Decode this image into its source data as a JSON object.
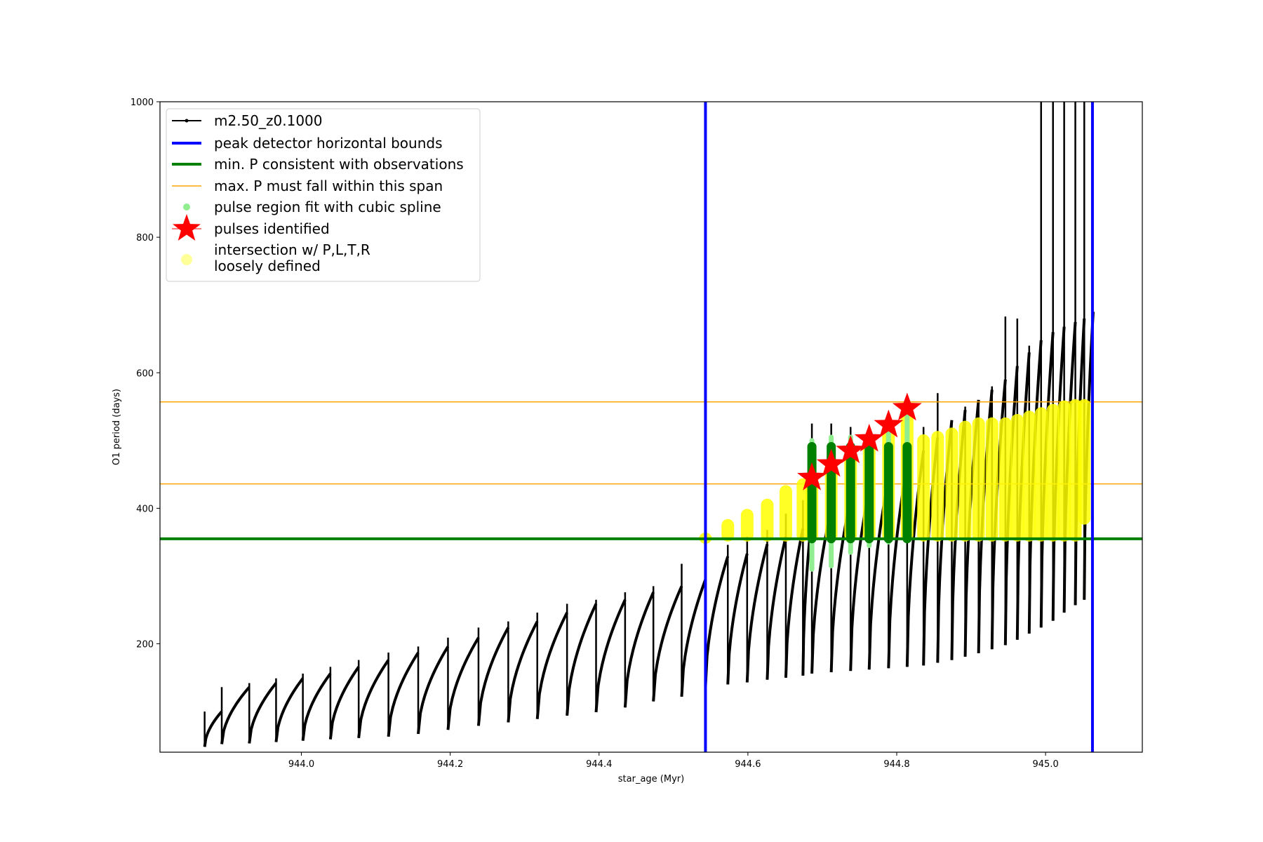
{
  "chart_data": {
    "type": "scatter",
    "xlabel": "star_age (Myr)",
    "ylabel": "O1 period (days)",
    "xlim": [
      943.81,
      945.13
    ],
    "ylim": [
      40,
      1000
    ],
    "x_ticks": [
      944.0,
      944.2,
      944.4,
      944.6,
      944.8,
      945.0
    ],
    "x_tick_labels": [
      "944.0",
      "944.2",
      "944.4",
      "944.6",
      "944.8",
      "945.0"
    ],
    "y_ticks": [
      200,
      400,
      600,
      800,
      1000
    ],
    "y_tick_labels": [
      "200",
      "400",
      "600",
      "800",
      "1000"
    ],
    "grid": false,
    "legend_position": "top-left",
    "legend": [
      {
        "label": "m2.50_z0.1000",
        "marker": "line-dot",
        "color": "#000000"
      },
      {
        "label": "peak detector horizontal bounds",
        "marker": "thick-line",
        "color": "#0000ff"
      },
      {
        "label": "min. P consistent with observations",
        "marker": "thick-line",
        "color": "#008000"
      },
      {
        "label": "max. P must fall within this span",
        "marker": "thin-line",
        "color": "#ffa500"
      },
      {
        "label": "pulse region fit with cubic spline",
        "marker": "dot",
        "color": "#90ee90"
      },
      {
        "label": "pulses identified",
        "marker": "star",
        "color": "#ff0000"
      },
      {
        "label": "intersection w/ P,L,T,R",
        "label2": "loosely defined",
        "marker": "dot",
        "color": "#ffff99"
      }
    ],
    "vertical_lines": {
      "name": "peak detector horizontal bounds",
      "color": "#0000ff",
      "x": [
        944.543,
        945.063
      ]
    },
    "min_period_line": {
      "name": "min. P consistent with observations",
      "color": "#008000",
      "y": 355
    },
    "max_period_span": {
      "name": "max. P must fall within this span",
      "color": "#ffa500",
      "y": [
        436,
        557
      ]
    },
    "pulses_identified": {
      "color": "#ff0000",
      "x": [
        944.686,
        944.712,
        944.738,
        944.763,
        944.789,
        944.814
      ],
      "y": [
        445,
        465,
        485,
        502,
        523,
        548
      ]
    },
    "series": [
      {
        "name": "m2.50_z0.1000",
        "color": "#000000",
        "pulse_ages": [
          943.87,
          943.893,
          943.93,
          943.966,
          944.002,
          944.039,
          944.077,
          944.117,
          944.157,
          944.197,
          944.238,
          944.278,
          944.317,
          944.357,
          944.396,
          944.435,
          944.473,
          944.511,
          944.543,
          944.573,
          944.599,
          944.626,
          944.651,
          944.674,
          944.686,
          944.712,
          944.738,
          944.763,
          944.789,
          944.814,
          944.836,
          944.855,
          944.874,
          944.892,
          944.91,
          944.928,
          944.946,
          944.962,
          944.978,
          944.994,
          945.01,
          945.025,
          945.04,
          945.052
        ],
        "pulse_min": [
          48,
          52,
          53,
          55,
          57,
          59,
          61,
          63,
          67,
          73,
          79,
          84,
          89,
          94,
          99,
          106,
          115,
          122,
          137,
          140,
          143,
          147,
          150,
          153,
          156,
          158,
          160,
          162,
          164,
          166,
          168,
          172,
          176,
          181,
          186,
          192,
          198,
          206,
          215,
          224,
          234,
          246,
          257,
          265
        ],
        "pulse_peak": [
          100,
          136,
          142,
          149,
          156,
          166,
          176,
          187,
          196,
          209,
          224,
          233,
          246,
          259,
          265,
          276,
          285,
          295,
          329,
          333,
          347,
          358,
          370,
          390,
          400,
          415,
          430,
          445,
          465,
          485,
          505,
          530,
          545,
          560,
          575,
          590,
          610,
          630,
          648,
          660,
          668,
          675,
          680,
          690
        ],
        "spike_max": [
          100,
          136,
          142,
          149,
          156,
          166,
          176,
          187,
          196,
          209,
          224,
          233,
          246,
          259,
          265,
          276,
          285,
          318,
          342,
          346,
          358,
          368,
          392,
          412,
          525,
          525,
          520,
          520,
          515,
          535,
          520,
          570,
          530,
          550,
          560,
          580,
          683,
          680,
          640,
          1000,
          1000,
          1000,
          1000,
          1000
        ]
      },
      {
        "name": "pulse region fit with cubic spline",
        "color": "#90ee90",
        "x": [
          944.686,
          944.712,
          944.738,
          944.763,
          944.789,
          944.814
        ],
        "y_min": [
          310,
          315,
          335,
          345,
          350,
          355
        ],
        "y_max": [
          500,
          505,
          505,
          510,
          515,
          535
        ]
      },
      {
        "name": "intersection w/ P,L,T,R loosely defined",
        "color": "#ffff00",
        "x": [
          944.543,
          944.573,
          944.599,
          944.626,
          944.651,
          944.674,
          944.686,
          944.712,
          944.738,
          944.763,
          944.789,
          944.814,
          944.836,
          944.855,
          944.874,
          944.892,
          944.91,
          944.928,
          944.946,
          944.962,
          944.978,
          944.994,
          945.01,
          945.025,
          945.04,
          945.052
        ],
        "y_min": [
          355,
          355,
          355,
          355,
          355,
          355,
          355,
          355,
          355,
          355,
          355,
          355,
          355,
          355,
          355,
          355,
          355,
          355,
          355,
          355,
          355,
          355,
          355,
          355,
          355,
          380
        ],
        "y_max": [
          360,
          380,
          395,
          410,
          430,
          440,
          450,
          465,
          480,
          500,
          520,
          540,
          505,
          510,
          515,
          525,
          530,
          530,
          530,
          535,
          540,
          545,
          550,
          555,
          557,
          557
        ]
      }
    ]
  }
}
